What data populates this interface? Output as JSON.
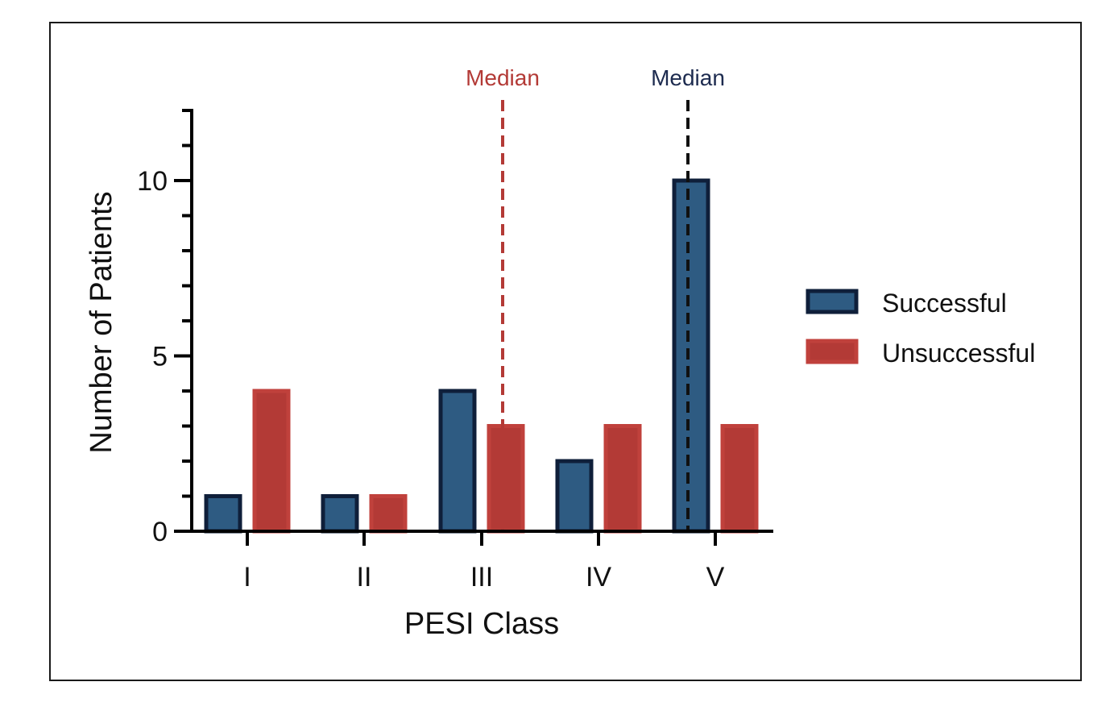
{
  "chart_data": {
    "type": "bar",
    "categories": [
      "I",
      "II",
      "III",
      "IV",
      "V"
    ],
    "series": [
      {
        "name": "Successful",
        "values": [
          1,
          1,
          4,
          2,
          10
        ],
        "fill": "#2e5b82",
        "stroke": "#0f1f3a"
      },
      {
        "name": "Unsuccessful",
        "values": [
          4,
          1,
          3,
          3,
          3
        ],
        "fill": "#b33a36",
        "stroke": "#c0413c"
      }
    ],
    "xlabel": "PESI Class",
    "ylabel": "Number of Patients",
    "ylim": [
      0,
      12
    ],
    "yticks_major": [
      0,
      5,
      10
    ],
    "yticks_minor_step": 1,
    "grid": false,
    "legend_position": "right",
    "annotations": [
      {
        "label": "Median",
        "series": "Unsuccessful",
        "x_category": "III",
        "color": "#b33a36"
      },
      {
        "label": "Median",
        "series": "Successful",
        "x_category": "V",
        "color": "#1d2b4f"
      }
    ]
  }
}
